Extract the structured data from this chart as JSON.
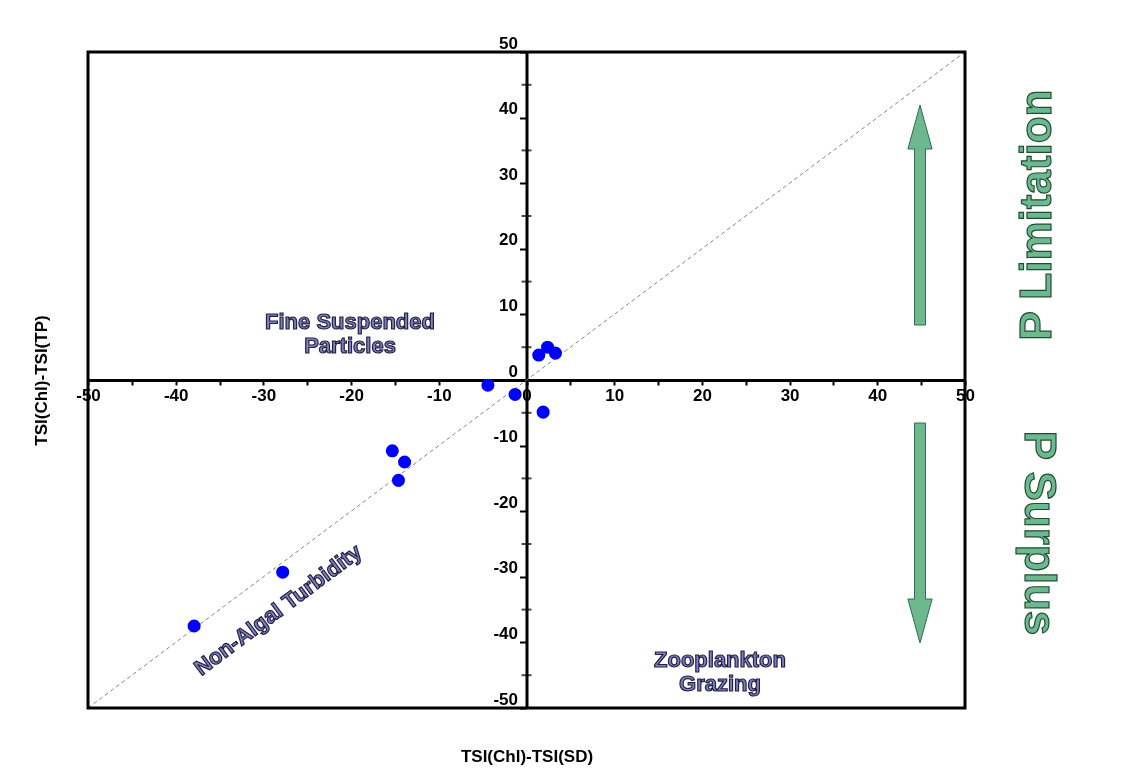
{
  "chart_data": {
    "type": "scatter",
    "xlabel": "TSI(Chl)-TSI(SD)",
    "ylabel": "TSI(Chl)-TSI(TP)",
    "x": [
      -37.9,
      -27.8,
      -15.3,
      -13.9,
      -14.6,
      -4.4,
      -1.3,
      1.4,
      2.4,
      3.3,
      1.9
    ],
    "series": [
      {
        "type": "line",
        "color": "#888888",
        "line_style": "dashed",
        "marker": "none",
        "x": [
          -50,
          50
        ],
        "values": [
          -50,
          50
        ]
      },
      {
        "color": "#0000ff",
        "marker": "circle",
        "values": [
          -37.5,
          -29.3,
          -10.8,
          -12.5,
          -15.3,
          -0.8,
          -2.2,
          3.8,
          5.0,
          4.1,
          -4.9
        ]
      }
    ],
    "xlim": [
      -50,
      50
    ],
    "ylim": [
      -50,
      50
    ],
    "xticks": [
      -50,
      {
        "value": -45,
        "label": null
      },
      -40,
      {
        "value": -35,
        "label": null
      },
      -30,
      {
        "value": -25,
        "label": null
      },
      -20,
      {
        "value": -15,
        "label": null
      },
      -10,
      {
        "value": -5,
        "label": null
      },
      0,
      {
        "value": 5,
        "label": null
      },
      10,
      {
        "value": 15,
        "label": null
      },
      20,
      {
        "value": 25,
        "label": null
      },
      30,
      {
        "value": 35,
        "label": null
      },
      40,
      {
        "value": 45,
        "label": null
      },
      50
    ],
    "yticks": [
      -50,
      {
        "value": -45,
        "label": null
      },
      -40,
      {
        "value": -35,
        "label": null
      },
      -30,
      {
        "value": -25,
        "label": null
      },
      -20,
      {
        "value": -15,
        "label": null
      },
      -10,
      {
        "value": -5,
        "label": null
      },
      0,
      {
        "value": 5,
        "label": null
      },
      10,
      {
        "value": 15,
        "label": null
      },
      20,
      {
        "value": 25,
        "label": null
      },
      30,
      {
        "value": 35,
        "label": null
      },
      40,
      {
        "value": 45,
        "label": null
      },
      50
    ],
    "grid": false,
    "annotations": [
      "Fine Suspended\nParticles",
      "Non-Algal Turbidity",
      "Zooplankton\nGrazing",
      "P Limitation",
      "P Surplus"
    ]
  }
}
